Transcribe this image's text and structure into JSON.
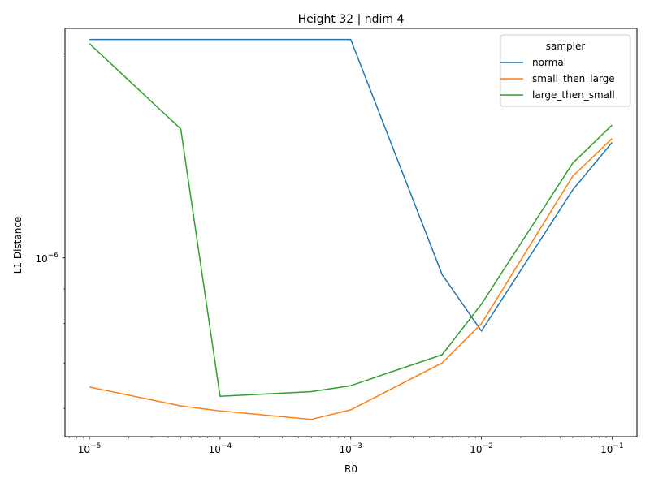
{
  "chart_data": {
    "type": "line",
    "title": "Height 32 | ndim 4",
    "xlabel": "R0",
    "ylabel": "L1 Distance",
    "xscale": "log",
    "yscale": "log",
    "xlim": [
      6.5e-06,
      0.155
    ],
    "ylim": [
      5.45e-07,
      2.18e-06
    ],
    "x_ticks": [
      {
        "value": 1e-05,
        "base": "10",
        "exp": "−5"
      },
      {
        "value": 0.0001,
        "base": "10",
        "exp": "−4"
      },
      {
        "value": 0.001,
        "base": "10",
        "exp": "−3"
      },
      {
        "value": 0.01,
        "base": "10",
        "exp": "−2"
      },
      {
        "value": 0.1,
        "base": "10",
        "exp": "−1"
      }
    ],
    "y_ticks": [
      {
        "value": 1e-06,
        "base": "10",
        "exp": "−6"
      }
    ],
    "x": [
      1e-05,
      5e-05,
      0.0001,
      0.0005,
      0.001,
      0.005,
      0.01,
      0.05,
      0.1
    ],
    "legend": {
      "title": "sampler",
      "position": "upper right"
    },
    "series": [
      {
        "name": "normal",
        "color": "#1f77b4",
        "values": [
          2.1e-06,
          null,
          null,
          null,
          2.1e-06,
          9.45e-07,
          7.8e-07,
          1.26e-06,
          1.48e-06
        ]
      },
      {
        "name": "small_then_large",
        "color": "#ff7f0e",
        "values": [
          6.45e-07,
          6.05e-07,
          5.95e-07,
          5.78e-07,
          5.97e-07,
          7e-07,
          8e-07,
          1.32e-06,
          1.5e-06
        ]
      },
      {
        "name": "large_then_small",
        "color": "#2ca02c",
        "values": [
          2.07e-06,
          1.55e-06,
          6.25e-07,
          6.35e-07,
          6.48e-07,
          7.2e-07,
          8.55e-07,
          1.38e-06,
          1.57e-06
        ]
      }
    ]
  }
}
